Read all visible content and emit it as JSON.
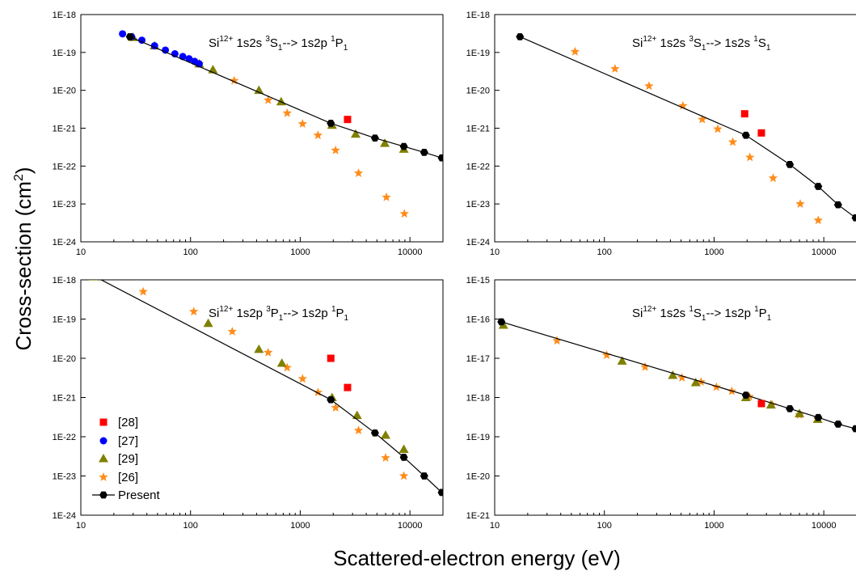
{
  "figure": {
    "ylabel": "Cross-section (cm",
    "ylabel_sup": "2",
    "ylabel_end": ")",
    "xlabel": "Scattered-electron energy (eV)"
  },
  "legend": {
    "placement": "lower-left of bottom-left panel",
    "entries": [
      {
        "label": "[28]",
        "marker": "square",
        "color": "#ff0000"
      },
      {
        "label": "[27]",
        "marker": "circle",
        "color": "#0000ff"
      },
      {
        "label": "[29]",
        "marker": "triangle",
        "color": "#808000"
      },
      {
        "label": "[26]",
        "marker": "star",
        "color": "#ff8c1a"
      },
      {
        "label": "Present",
        "marker": "hexagon-line",
        "color": "#000000"
      }
    ]
  },
  "chart_data": [
    {
      "type": "scatter",
      "panel": "top-left",
      "annotation": {
        "ion": "Si",
        "charge": "12+",
        "t1": "1s2s ",
        "s1": "3",
        "t2": "S",
        "b1": "1",
        "t3": "--> 1s2p ",
        "s2": "1",
        "t4": "P",
        "b2": "1"
      },
      "xscale": "log",
      "yscale": "log",
      "xlim": [
        10,
        20000
      ],
      "ylim": [
        1e-24,
        1e-18
      ],
      "xticks": [
        "10",
        "100",
        "1000",
        "10000"
      ],
      "yticks": [
        "1E-24",
        "1E-23",
        "1E-22",
        "1E-21",
        "1E-20",
        "1E-19",
        "1E-18"
      ],
      "series": [
        {
          "name": "Present",
          "x": [
            28,
            1900,
            4800,
            8800,
            13500,
            19500
          ],
          "y": [
            2.6e-19,
            1.35e-21,
            5.5e-22,
            3.3e-22,
            2.3e-22,
            1.65e-22
          ]
        },
        {
          "name": "[27]",
          "x": [
            24,
            29,
            36,
            47,
            59,
            72,
            85,
            97,
            109,
            120
          ],
          "y": [
            3.1e-19,
            2.6e-19,
            2.1e-19,
            1.5e-19,
            1.15e-19,
            9.2e-20,
            7.8e-20,
            6.8e-20,
            5.8e-20,
            5e-20
          ]
        },
        {
          "name": "[29]",
          "x": [
            30,
            47,
            120,
            160,
            420,
            670,
            1950,
            3200,
            5900,
            8800
          ],
          "y": [
            2.5e-19,
            1.5e-19,
            5e-20,
            3.5e-20,
            1e-20,
            5e-21,
            1.2e-21,
            7e-22,
            4e-22,
            2.8e-22
          ]
        },
        {
          "name": "[26]",
          "x": [
            120,
            250,
            510,
            760,
            1050,
            1450,
            2100,
            3400,
            6100,
            8900
          ],
          "y": [
            5e-20,
            1.8e-20,
            5.5e-21,
            2.5e-21,
            1.3e-21,
            6.5e-22,
            2.6e-22,
            6.5e-23,
            1.5e-23,
            5.5e-24
          ]
        },
        {
          "name": "[28]",
          "x": [
            2700
          ],
          "y": [
            1.7e-21
          ]
        }
      ]
    },
    {
      "type": "scatter",
      "panel": "top-right",
      "annotation": {
        "ion": "Si",
        "charge": "12+",
        "t1": "1s2s ",
        "s1": "3",
        "t2": "S",
        "b1": "1",
        "t3": "--> 1s2s ",
        "s2": "1",
        "t4": "S",
        "b2": "1"
      },
      "xscale": "log",
      "yscale": "log",
      "xlim": [
        10,
        20000
      ],
      "ylim": [
        1e-24,
        1e-18
      ],
      "xticks": [
        "10",
        "100",
        "1000",
        "10000"
      ],
      "yticks": [
        "1E-24",
        "1E-23",
        "1E-22",
        "1E-21",
        "1E-20",
        "1E-19",
        "1E-18"
      ],
      "series": [
        {
          "name": "Present",
          "x": [
            17,
            1950,
            4900,
            8900,
            13500,
            19500
          ],
          "y": [
            2.6e-19,
            6.5e-22,
            1.1e-22,
            2.9e-23,
            9.5e-24,
            4.3e-24
          ]
        },
        {
          "name": "[26]",
          "x": [
            54,
            125,
            255,
            520,
            780,
            1080,
            1480,
            2120,
            3450,
            6100,
            8900
          ],
          "y": [
            1.05e-19,
            3.7e-20,
            1.3e-20,
            3.9e-21,
            1.7e-21,
            9.5e-22,
            4.3e-22,
            1.7e-22,
            4.8e-23,
            1e-23,
            3.7e-24
          ]
        },
        {
          "name": "[28]",
          "x": [
            1900,
            2700
          ],
          "y": [
            2.4e-21,
            7.5e-22
          ]
        }
      ]
    },
    {
      "type": "scatter",
      "panel": "bottom-left",
      "annotation": {
        "ion": "Si",
        "charge": "12+",
        "t1": "1s2p ",
        "s1": "3",
        "t2": "P",
        "b1": "1",
        "t3": "--> 1s2p ",
        "s2": "1",
        "t4": "P",
        "b2": "1"
      },
      "xscale": "log",
      "yscale": "log",
      "xlim": [
        10,
        20000
      ],
      "ylim": [
        1e-24,
        1e-18
      ],
      "xticks": [
        "10",
        "100",
        "1000",
        "10000"
      ],
      "yticks": [
        "1E-24",
        "1E-23",
        "1E-22",
        "1E-21",
        "1E-20",
        "1E-19",
        "1E-18"
      ],
      "series": [
        {
          "name": "Present",
          "x": [
            12.5,
            1900,
            4800,
            8800,
            13500,
            19500
          ],
          "y": [
            1.35e-18,
            8.8e-22,
            1.25e-22,
            3e-23,
            1e-23,
            3.8e-24
          ]
        },
        {
          "name": "[29]",
          "x": [
            13,
            145,
            420,
            680,
            1950,
            3300,
            6000,
            8800
          ],
          "y": [
            1.2e-18,
            7.8e-20,
            1.7e-20,
            7.5e-21,
            1e-21,
            3.5e-22,
            1.1e-22,
            4.8e-23
          ]
        },
        {
          "name": "[26]",
          "x": [
            37,
            107,
            240,
            510,
            760,
            1050,
            1450,
            2100,
            3400,
            6000,
            8800
          ],
          "y": [
            5e-19,
            1.55e-19,
            4.8e-20,
            1.4e-20,
            5.8e-21,
            3e-21,
            1.35e-21,
            5.5e-22,
            1.45e-22,
            2.9e-23,
            1e-23
          ]
        },
        {
          "name": "[28]",
          "x": [
            1900,
            2700
          ],
          "y": [
            1e-20,
            1.8e-21
          ]
        }
      ]
    },
    {
      "type": "scatter",
      "panel": "bottom-right",
      "annotation": {
        "ion": "Si",
        "charge": "12+",
        "t1": "1s2s ",
        "s1": "1",
        "t2": "S",
        "b1": "1",
        "t3": "--> 1s2p ",
        "s2": "1",
        "t4": "P",
        "b2": "1"
      },
      "xscale": "log",
      "yscale": "log",
      "xlim": [
        10,
        20000
      ],
      "ylim": [
        1e-21,
        1e-15
      ],
      "xticks": [
        "10",
        "100",
        "1000",
        "10000"
      ],
      "yticks": [
        "1E-21",
        "1E-20",
        "1E-19",
        "1E-18",
        "1E-17",
        "1E-16",
        "1E-15"
      ],
      "series": [
        {
          "name": "Present",
          "x": [
            11.5,
            1950,
            4900,
            8900,
            13500,
            19500
          ],
          "y": [
            8.5e-17,
            1.15e-18,
            5.2e-19,
            3.1e-19,
            2.1e-19,
            1.6e-19
          ]
        },
        {
          "name": "[29]",
          "x": [
            12,
            145,
            420,
            680,
            1950,
            3300,
            6000,
            8800
          ],
          "y": [
            7e-17,
            8.5e-18,
            3.7e-18,
            2.4e-18,
            1e-18,
            6.5e-19,
            3.9e-19,
            2.8e-19
          ]
        },
        {
          "name": "[26]",
          "x": [
            37,
            105,
            235,
            510,
            760,
            1050,
            1450,
            2100,
            3400,
            6000,
            8800
          ],
          "y": [
            2.8e-17,
            1.2e-17,
            6e-18,
            3.2e-18,
            2.5e-18,
            1.85e-18,
            1.45e-18,
            1.05e-18,
            6.5e-19,
            3.6e-19,
            2.8e-19
          ]
        },
        {
          "name": "[28]",
          "x": [
            2700
          ],
          "y": [
            7e-19
          ]
        }
      ]
    }
  ]
}
